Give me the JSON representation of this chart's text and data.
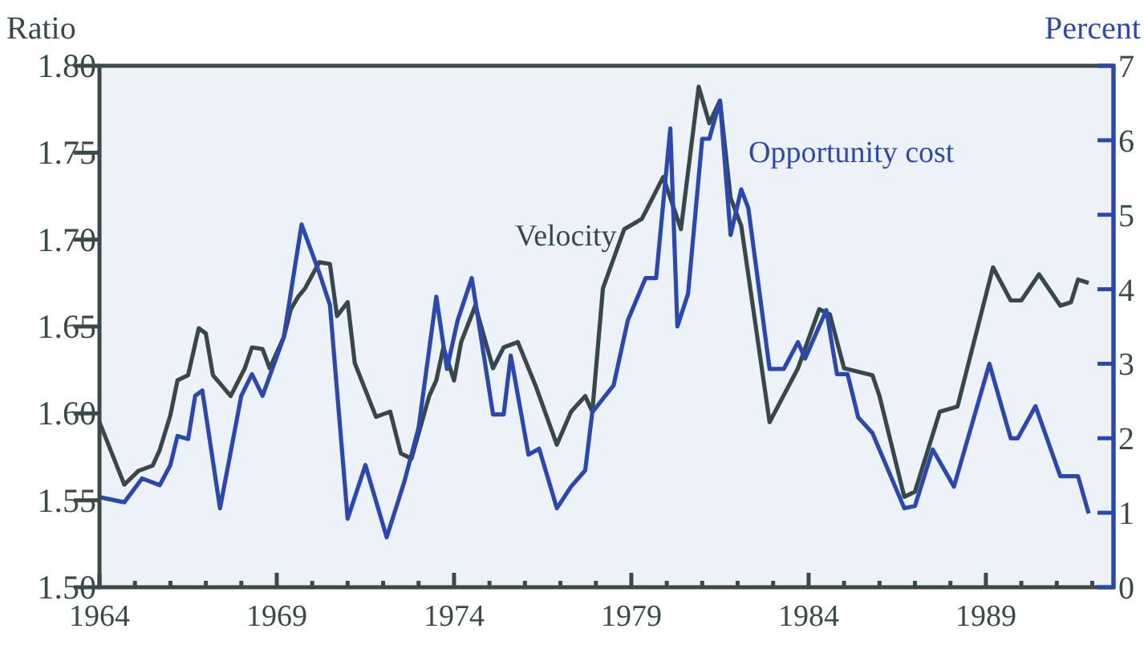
{
  "chart_data": {
    "type": "line",
    "ylabel": "Ratio",
    "y2label": "Percent",
    "xlim": [
      1964,
      1992.6
    ],
    "xticks": [
      1964,
      {
        "value": 1965,
        "label": null
      },
      {
        "value": 1966,
        "label": null
      },
      {
        "value": 1967,
        "label": null
      },
      {
        "value": 1968,
        "label": null
      },
      1969,
      {
        "value": 1970,
        "label": null
      },
      {
        "value": 1971,
        "label": null
      },
      {
        "value": 1972,
        "label": null
      },
      {
        "value": 1973,
        "label": null
      },
      1974,
      {
        "value": 1975,
        "label": null
      },
      {
        "value": 1976,
        "label": null
      },
      {
        "value": 1977,
        "label": null
      },
      {
        "value": 1978,
        "label": null
      },
      1979,
      {
        "value": 1980,
        "label": null
      },
      {
        "value": 1981,
        "label": null
      },
      {
        "value": 1982,
        "label": null
      },
      {
        "value": 1983,
        "label": null
      },
      1984,
      {
        "value": 1985,
        "label": null
      },
      {
        "value": 1986,
        "label": null
      },
      {
        "value": 1987,
        "label": null
      },
      {
        "value": 1988,
        "label": null
      },
      1989,
      {
        "value": 1990,
        "label": null
      },
      {
        "value": 1991,
        "label": null
      },
      {
        "value": 1992,
        "label": null
      }
    ],
    "ylim": [
      1.5,
      1.8
    ],
    "yticks": [
      {
        "value": 1.5,
        "label": "1.50"
      },
      {
        "value": 1.55,
        "label": "1.55"
      },
      {
        "value": 1.6,
        "label": "1.60"
      },
      {
        "value": 1.65,
        "label": "1.65"
      },
      {
        "value": 1.7,
        "label": "1.70"
      },
      {
        "value": 1.75,
        "label": "1.75"
      },
      {
        "value": 1.8,
        "label": "1.80"
      }
    ],
    "y2lim": [
      0,
      7
    ],
    "y2ticks": [
      0,
      1,
      2,
      3,
      4,
      5,
      6,
      7
    ],
    "grid": false,
    "marker": "none",
    "line_style": "solid",
    "series": [
      {
        "name": "Velocity",
        "color": "#38474a",
        "axis": "y",
        "x": [
          1964.0,
          1964.7,
          1965.1,
          1965.5,
          1965.7,
          1966.0,
          1966.2,
          1966.5,
          1966.8,
          1967.0,
          1967.2,
          1967.7,
          1968.1,
          1968.3,
          1968.6,
          1968.8,
          1969.2,
          1969.4,
          1969.6,
          1969.8,
          1970.2,
          1970.5,
          1970.7,
          1971.0,
          1971.2,
          1971.8,
          1972.2,
          1972.5,
          1972.8,
          1973.3,
          1973.5,
          1973.7,
          1974.0,
          1974.2,
          1974.6,
          1975.1,
          1975.4,
          1975.8,
          1976.3,
          1976.9,
          1977.3,
          1977.7,
          1977.9,
          1978.2,
          1978.8,
          1979.3,
          1979.9,
          1980.4,
          1980.9,
          1981.2,
          1981.5,
          1981.8,
          1982.1,
          1982.9,
          1983.7,
          1984.3,
          1984.6,
          1985.0,
          1985.8,
          1986.0,
          1986.7,
          1987.0,
          1987.7,
          1988.2,
          1989.2,
          1989.7,
          1990.0,
          1990.5,
          1991.1,
          1991.4,
          1991.6,
          1991.9
        ],
        "values": [
          1.595,
          1.559,
          1.567,
          1.57,
          1.579,
          1.599,
          1.619,
          1.622,
          1.649,
          1.646,
          1.622,
          1.61,
          1.626,
          1.638,
          1.637,
          1.626,
          1.644,
          1.66,
          1.667,
          1.672,
          1.687,
          1.686,
          1.656,
          1.664,
          1.629,
          1.598,
          1.601,
          1.577,
          1.574,
          1.61,
          1.619,
          1.638,
          1.619,
          1.641,
          1.662,
          1.626,
          1.638,
          1.641,
          1.616,
          1.582,
          1.601,
          1.61,
          1.601,
          1.672,
          1.706,
          1.712,
          1.736,
          1.706,
          1.788,
          1.767,
          1.78,
          1.724,
          1.708,
          1.595,
          1.626,
          1.66,
          1.657,
          1.626,
          1.622,
          1.61,
          1.552,
          1.555,
          1.601,
          1.604,
          1.684,
          1.665,
          1.665,
          1.68,
          1.662,
          1.664,
          1.677,
          1.675
        ]
      },
      {
        "name": "Opportunity cost",
        "color": "#2b48b0",
        "axis": "y2",
        "x": [
          1964.0,
          1964.7,
          1965.2,
          1965.7,
          1966.0,
          1966.2,
          1966.5,
          1966.7,
          1966.9,
          1967.4,
          1968.0,
          1968.3,
          1968.6,
          1969.2,
          1969.7,
          1970.2,
          1970.5,
          1971.0,
          1971.5,
          1972.1,
          1972.6,
          1973.0,
          1973.5,
          1973.8,
          1974.1,
          1974.5,
          1975.1,
          1975.4,
          1975.6,
          1976.1,
          1976.4,
          1976.9,
          1977.3,
          1977.7,
          1977.9,
          1978.5,
          1978.9,
          1979.4,
          1979.7,
          1980.1,
          1980.3,
          1980.6,
          1981.0,
          1981.2,
          1981.5,
          1981.8,
          1982.1,
          1982.3,
          1982.9,
          1983.3,
          1983.7,
          1983.9,
          1984.5,
          1984.8,
          1985.1,
          1985.4,
          1985.8,
          1986.7,
          1987.0,
          1987.5,
          1988.1,
          1989.1,
          1989.7,
          1989.9,
          1990.4,
          1991.1,
          1991.6,
          1991.9
        ],
        "values": [
          1.21,
          1.14,
          1.46,
          1.37,
          1.64,
          2.03,
          1.99,
          2.57,
          2.64,
          1.06,
          2.57,
          2.86,
          2.57,
          3.36,
          4.87,
          4.22,
          3.79,
          0.92,
          1.64,
          0.67,
          1.42,
          2.14,
          3.9,
          2.93,
          3.58,
          4.15,
          2.32,
          2.32,
          3.11,
          1.78,
          1.86,
          1.06,
          1.35,
          1.57,
          2.35,
          2.71,
          3.58,
          4.15,
          4.15,
          6.16,
          3.5,
          3.94,
          6.02,
          6.02,
          6.53,
          4.73,
          5.34,
          5.09,
          2.93,
          2.93,
          3.29,
          3.07,
          3.72,
          2.86,
          2.86,
          2.28,
          2.07,
          1.06,
          1.09,
          1.85,
          1.35,
          3.0,
          2.0,
          2.0,
          2.43,
          1.49,
          1.49,
          0.99
        ]
      }
    ]
  }
}
